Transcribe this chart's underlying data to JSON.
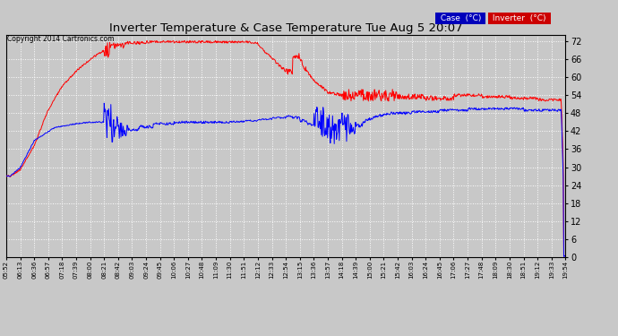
{
  "title": "Inverter Temperature & Case Temperature Tue Aug 5 20:07",
  "copyright": "Copyright 2014 Cartronics.com",
  "background_color": "#c8c8c8",
  "plot_bg_color": "#c8c8c8",
  "grid_color": "#ffffff",
  "ylim": [
    0.0,
    74.0
  ],
  "yticks": [
    0.0,
    6.0,
    12.0,
    18.0,
    24.0,
    30.0,
    36.0,
    42.0,
    48.0,
    54.0,
    60.0,
    66.0,
    72.0
  ],
  "xtick_labels": [
    "05:52",
    "06:13",
    "06:36",
    "06:57",
    "07:18",
    "07:39",
    "08:00",
    "08:21",
    "08:42",
    "09:03",
    "09:24",
    "09:45",
    "10:06",
    "10:27",
    "10:48",
    "11:09",
    "11:30",
    "11:51",
    "12:12",
    "12:33",
    "12:54",
    "13:15",
    "13:36",
    "13:57",
    "14:18",
    "14:39",
    "15:00",
    "15:21",
    "15:42",
    "16:03",
    "16:24",
    "16:45",
    "17:06",
    "17:27",
    "17:48",
    "18:09",
    "18:30",
    "18:51",
    "19:12",
    "19:33",
    "19:54"
  ],
  "case_color": "#0000ff",
  "inverter_color": "#ff0000",
  "case_label": "Case  (°C)",
  "inverter_label": "Inverter  (°C)"
}
